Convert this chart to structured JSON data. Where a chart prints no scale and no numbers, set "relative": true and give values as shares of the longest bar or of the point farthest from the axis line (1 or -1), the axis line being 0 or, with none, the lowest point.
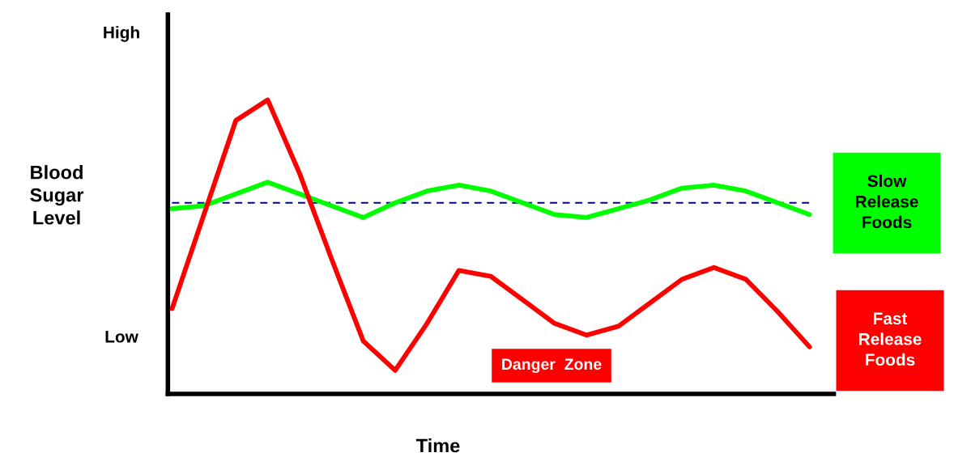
{
  "chart_data": {
    "type": "line",
    "relative": true,
    "xlabel": "Time",
    "ylabel": "Blood\nSugar\nLevel",
    "categories": [
      null,
      null,
      null,
      null,
      null,
      null,
      null,
      null,
      null,
      null,
      null,
      null,
      null,
      null,
      null,
      null,
      null,
      null,
      null,
      null,
      null
    ],
    "series": [
      {
        "name": "Slow Release Foods",
        "color": "#00ff00",
        "values": [
          0.63,
          0.64,
          0.68,
          0.72,
          0.68,
          0.64,
          0.6,
          0.65,
          0.69,
          0.71,
          0.69,
          0.65,
          0.61,
          0.6,
          0.63,
          0.66,
          0.7,
          0.71,
          0.69,
          0.65,
          0.61
        ]
      },
      {
        "name": "Fast Release Foods",
        "color": "#ff0000",
        "values": [
          0.29,
          0.61,
          0.93,
          1.0,
          0.75,
          0.46,
          0.18,
          0.08,
          0.24,
          0.42,
          0.4,
          0.32,
          0.24,
          0.2,
          0.23,
          0.31,
          0.39,
          0.43,
          0.39,
          0.28,
          0.16
        ]
      }
    ],
    "ref_lines": [
      {
        "axis": "y",
        "value": 0.65,
        "color": "#000080",
        "line_style": "dashed"
      }
    ],
    "annotations": [
      "High",
      "Low",
      "Danger  Zone"
    ],
    "legend": false,
    "marker": "none",
    "line_style": "solid"
  }
}
